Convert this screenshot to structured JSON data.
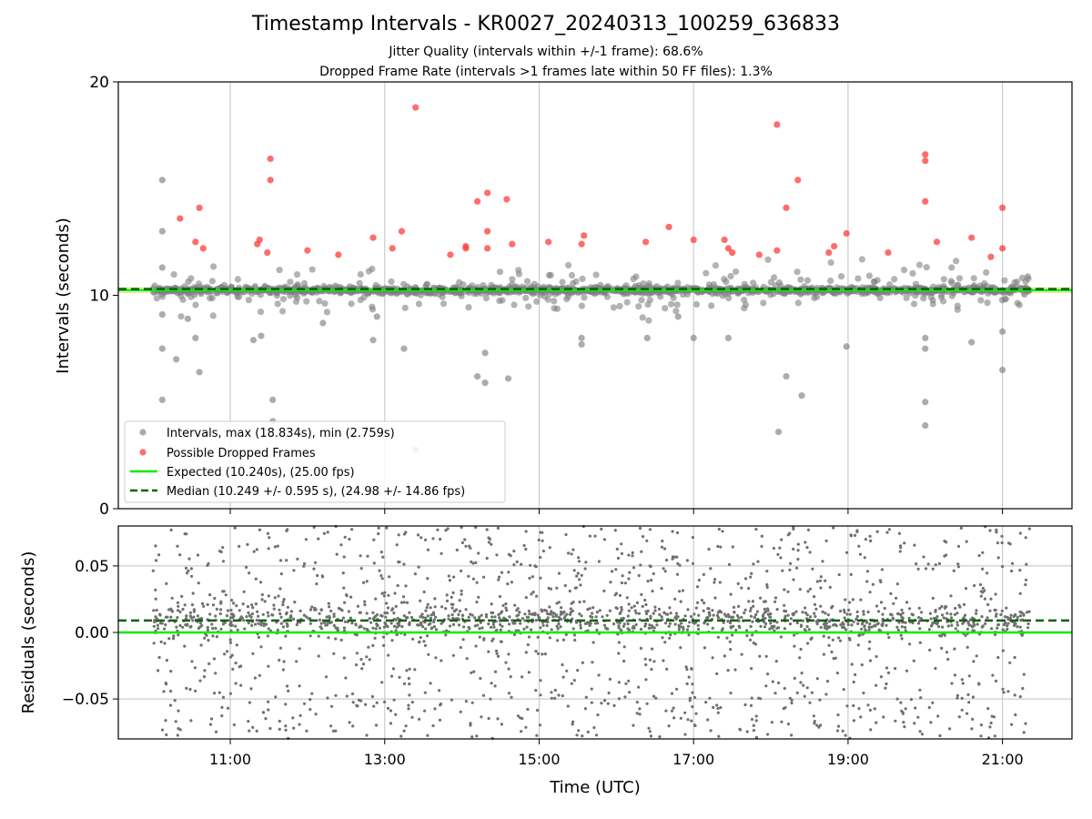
{
  "header": {
    "title": "Timestamp Intervals - KR0027_20240313_100259_636833",
    "subtitle_1": "Jitter Quality (intervals within +/-1 frame): 68.6%",
    "subtitle_2": "Dropped Frame Rate (intervals >1 frames late within 50 FF files): 1.3%"
  },
  "chart_data": [
    {
      "type": "scatter",
      "name": "intervals",
      "ylabel": "Intervals (seconds)",
      "ylim": [
        0,
        20
      ],
      "yticks": [
        "0",
        "10",
        "20"
      ],
      "xlim": [
        9.55,
        21.9
      ],
      "grid": "vertical",
      "legend_position": "bottom-left",
      "legend": [
        "Intervals, max (18.834s), min (2.759s)",
        "Possible Dropped Frames",
        "Expected (10.240s), (25.00 fps)",
        "Median (10.249 +/- 0.595 s), (24.98 +/- 14.86 fps)"
      ],
      "expected": 10.24,
      "median": 10.249,
      "colors": {
        "intervals": "#808080",
        "dropped": "#ff3b3b",
        "expected": "#00ee00",
        "median": "#006400",
        "band": "#f5d060"
      },
      "dropped_points": [
        [
          10.35,
          13.6
        ],
        [
          10.55,
          12.5
        ],
        [
          10.6,
          14.1
        ],
        [
          10.65,
          12.2
        ],
        [
          11.35,
          12.4
        ],
        [
          11.38,
          12.6
        ],
        [
          11.48,
          12.0
        ],
        [
          11.52,
          16.4
        ],
        [
          11.52,
          15.4
        ],
        [
          12.0,
          12.1
        ],
        [
          12.4,
          11.9
        ],
        [
          12.85,
          12.7
        ],
        [
          13.1,
          12.2
        ],
        [
          13.22,
          13.0
        ],
        [
          13.4,
          18.8
        ],
        [
          13.85,
          11.9
        ],
        [
          14.05,
          12.3
        ],
        [
          14.05,
          12.2
        ],
        [
          14.2,
          14.4
        ],
        [
          14.33,
          14.8
        ],
        [
          14.33,
          12.2
        ],
        [
          14.33,
          13.0
        ],
        [
          14.58,
          14.5
        ],
        [
          14.65,
          12.4
        ],
        [
          15.12,
          12.5
        ],
        [
          15.55,
          12.4
        ],
        [
          15.58,
          12.8
        ],
        [
          16.38,
          12.5
        ],
        [
          16.68,
          13.2
        ],
        [
          17.0,
          12.6
        ],
        [
          17.4,
          12.6
        ],
        [
          17.45,
          12.2
        ],
        [
          17.5,
          12.0
        ],
        [
          17.85,
          11.9
        ],
        [
          18.08,
          18.0
        ],
        [
          18.08,
          12.1
        ],
        [
          18.2,
          14.1
        ],
        [
          18.35,
          15.4
        ],
        [
          18.75,
          12.0
        ],
        [
          18.82,
          12.3
        ],
        [
          18.98,
          12.9
        ],
        [
          19.52,
          12.0
        ],
        [
          20.0,
          16.6
        ],
        [
          20.0,
          16.3
        ],
        [
          20.0,
          14.4
        ],
        [
          20.15,
          12.5
        ],
        [
          20.6,
          12.7
        ],
        [
          20.85,
          11.8
        ],
        [
          21.0,
          14.1
        ],
        [
          21.0,
          12.2
        ]
      ],
      "outlier_points": [
        [
          10.12,
          15.4
        ],
        [
          10.12,
          13.0
        ],
        [
          10.12,
          11.3
        ],
        [
          10.12,
          9.1
        ],
        [
          10.12,
          7.5
        ],
        [
          10.12,
          5.1
        ],
        [
          10.3,
          7.0
        ],
        [
          10.45,
          8.9
        ],
        [
          10.55,
          8.0
        ],
        [
          10.6,
          6.4
        ],
        [
          11.4,
          8.1
        ],
        [
          11.55,
          5.1
        ],
        [
          11.55,
          4.1
        ],
        [
          12.2,
          8.7
        ],
        [
          12.85,
          7.9
        ],
        [
          13.25,
          7.5
        ],
        [
          13.4,
          2.759
        ],
        [
          14.3,
          7.3
        ],
        [
          14.3,
          5.9
        ],
        [
          14.6,
          6.1
        ],
        [
          15.55,
          8.0
        ],
        [
          15.55,
          7.7
        ],
        [
          16.4,
          8.0
        ],
        [
          17.0,
          8.0
        ],
        [
          17.45,
          8.0
        ],
        [
          18.1,
          3.6
        ],
        [
          18.2,
          6.2
        ],
        [
          18.4,
          5.3
        ],
        [
          18.98,
          7.6
        ],
        [
          20.0,
          8.0
        ],
        [
          20.0,
          7.5
        ],
        [
          20.0,
          5.0
        ],
        [
          20.0,
          3.9
        ],
        [
          20.6,
          7.8
        ],
        [
          21.0,
          6.5
        ],
        [
          21.0,
          8.3
        ],
        [
          14.2,
          6.2
        ],
        [
          11.3,
          7.9
        ],
        [
          12.9,
          9.0
        ],
        [
          16.8,
          9.0
        ]
      ]
    },
    {
      "type": "scatter",
      "name": "residuals",
      "ylabel": "Residuals (seconds)",
      "xlabel": "Time (UTC)",
      "ylim": [
        -0.08,
        0.08
      ],
      "yticks": [
        "0.05",
        "0.00",
        "−0.05"
      ],
      "xticks": [
        "11:00",
        "13:00",
        "15:00",
        "17:00",
        "19:00",
        "21:00"
      ],
      "xlim": [
        9.55,
        21.9
      ],
      "grid": "both",
      "expected_residual": 0.0,
      "median_residual": 0.009,
      "data_range": [
        10.0,
        21.35
      ]
    }
  ]
}
